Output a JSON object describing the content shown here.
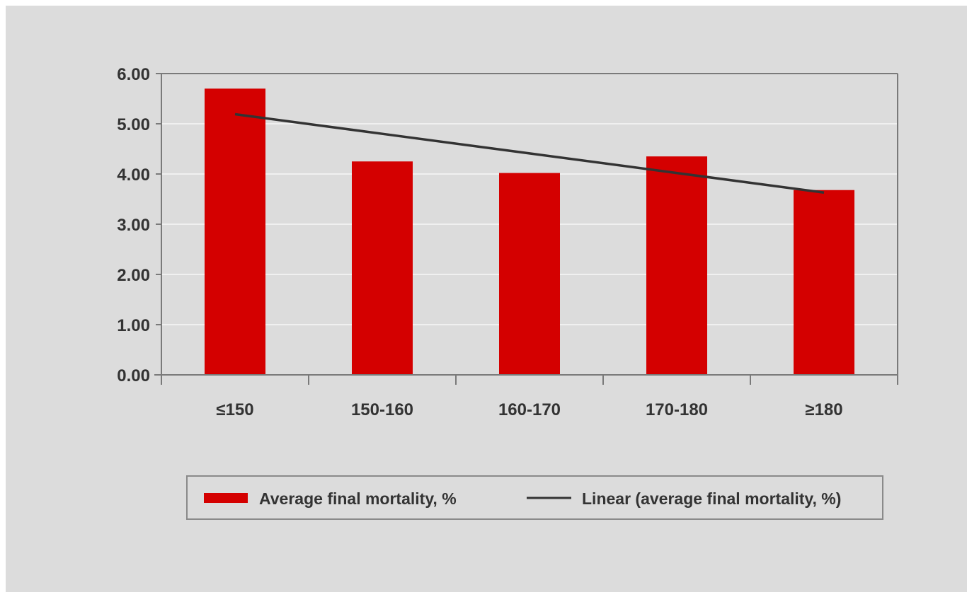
{
  "chart_data": {
    "type": "bar",
    "categories": [
      "≤150",
      "150-160",
      "160-170",
      "170-180",
      "≥180"
    ],
    "series": [
      {
        "name": "Average final mortality, %",
        "type": "bar",
        "values": [
          5.7,
          4.25,
          4.02,
          4.35,
          3.68
        ]
      },
      {
        "name": "Linear (average final mortality, %)",
        "type": "line",
        "values": [
          5.19,
          4.8,
          4.41,
          4.02,
          3.63
        ]
      }
    ],
    "ylim": [
      0,
      6
    ],
    "yticks": [
      "0.00",
      "1.00",
      "2.00",
      "3.00",
      "4.00",
      "5.00",
      "6.00"
    ],
    "grid": true,
    "legend_position": "bottom",
    "colors": {
      "bar": "#d40000",
      "trend": "#333333",
      "background": "#dcdcdc",
      "grid": "#f0f0f0",
      "axis": "#7a7a7a"
    }
  }
}
